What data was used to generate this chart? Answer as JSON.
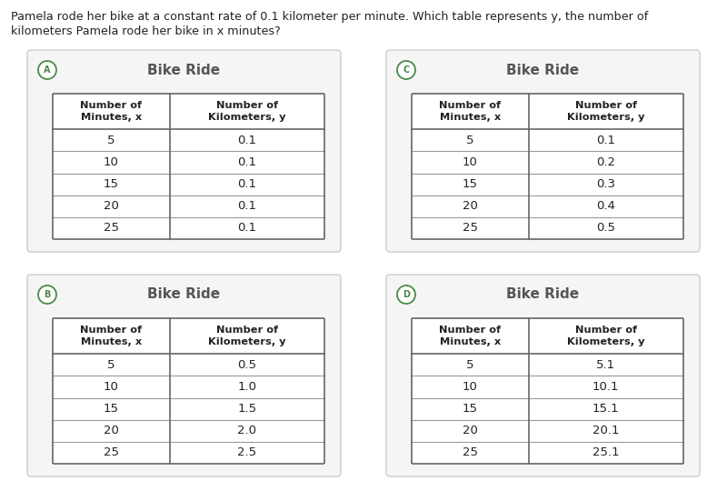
{
  "question_text_line1": "Pamela rode her bike at a constant rate of 0.1 kilometer per minute. Which table represents y, the number of",
  "question_text_line2": "kilometers Pamela rode her bike in x minutes?",
  "tables": [
    {
      "label": "A",
      "title": "Bike Ride",
      "col1_header": "Number of\nMinutes, x",
      "col2_header": "Number of\nKilometers, y",
      "minutes": [
        "5",
        "10",
        "15",
        "20",
        "25"
      ],
      "kilometers": [
        "0.1",
        "0.1",
        "0.1",
        "0.1",
        "0.1"
      ],
      "row": 0,
      "col": 0
    },
    {
      "label": "C",
      "title": "Bike Ride",
      "col1_header": "Number of\nMinutes, x",
      "col2_header": "Number of\nKilometers, y",
      "minutes": [
        "5",
        "10",
        "15",
        "20",
        "25"
      ],
      "kilometers": [
        "0.1",
        "0.2",
        "0.3",
        "0.4",
        "0.5"
      ],
      "row": 0,
      "col": 1
    },
    {
      "label": "B",
      "title": "Bike Ride",
      "col1_header": "Number of\nMinutes, x",
      "col2_header": "Number of\nKilometers, y",
      "minutes": [
        "5",
        "10",
        "15",
        "20",
        "25"
      ],
      "kilometers": [
        "0.5",
        "1.0",
        "1.5",
        "2.0",
        "2.5"
      ],
      "row": 1,
      "col": 0
    },
    {
      "label": "D",
      "title": "Bike Ride",
      "col1_header": "Number of\nMinutes, x",
      "col2_header": "Number of\nKilometers, y",
      "minutes": [
        "5",
        "10",
        "15",
        "20",
        "25"
      ],
      "kilometers": [
        "5.1",
        "10.1",
        "15.1",
        "20.1",
        "25.1"
      ],
      "row": 1,
      "col": 1
    }
  ],
  "bg_color": "#ffffff",
  "panel_bg": "#f5f5f5",
  "panel_border": "#cccccc",
  "table_line_color": "#666666",
  "row_sep_color": "#999999",
  "label_color": "#4a8a4a",
  "title_color": "#555555",
  "text_color": "#222222",
  "header_text_color": "#222222"
}
